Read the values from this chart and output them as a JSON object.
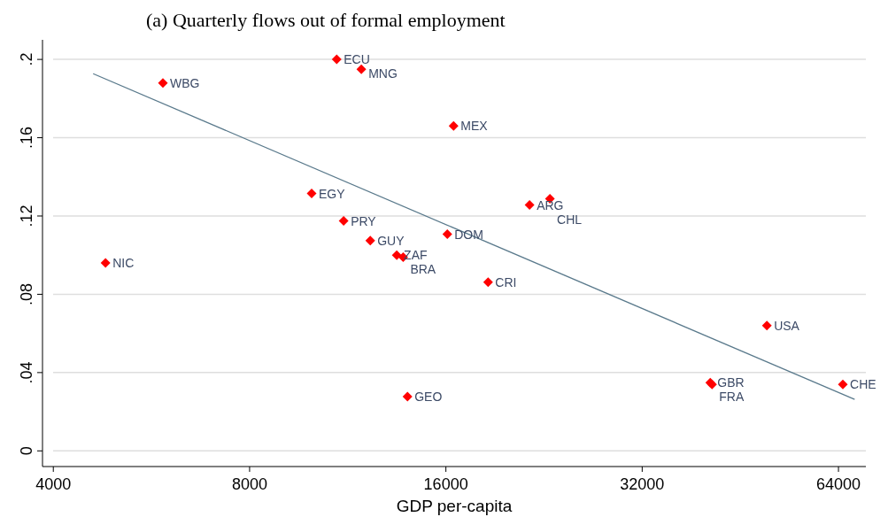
{
  "chart_data": {
    "type": "scatter",
    "title": "(a)  Quarterly flows out of formal employment",
    "xlabel": "GDP per-capita",
    "log": "x",
    "grid": "y",
    "xlim": [
      3850,
      70500
    ],
    "xticks": [
      4000,
      8000,
      16000,
      32000,
      64000
    ],
    "ylim": [
      -0.008,
      0.21
    ],
    "yticks": [
      {
        "value": 0,
        "label": "0"
      },
      {
        "value": 0.04,
        "label": ".04"
      },
      {
        "value": 0.08,
        "label": ".08"
      },
      {
        "value": 0.12,
        "label": ".12"
      },
      {
        "value": 0.16,
        "label": ".16"
      },
      {
        "value": 0.2,
        "label": ".2"
      }
    ],
    "series": [
      {
        "marker": "diamond",
        "color": "#ff0000",
        "x": [
          4810,
          5890,
          9960,
          11150,
          10880,
          11870,
          12250,
          13450,
          13760,
          13970,
          16080,
          16440,
          18570,
          21500,
          23100,
          40700,
          40950,
          49700,
          65000
        ],
        "values": [
          0.096,
          0.188,
          0.1315,
          0.1175,
          0.2,
          0.195,
          0.1075,
          0.1,
          0.099,
          0.0277,
          0.1107,
          0.166,
          0.0862,
          0.1256,
          0.1288,
          0.0349,
          0.034,
          0.064,
          0.034
        ]
      },
      {
        "type": "line",
        "color": "#5a7a8c",
        "x": [
          4604,
          67760
        ],
        "values": [
          0.1927,
          0.0263
        ]
      }
    ],
    "annotations": [
      {
        "text": "NIC",
        "x": 4810,
        "y": 0.096
      },
      {
        "text": "WBG",
        "x": 5890,
        "y": 0.188
      },
      {
        "text": "EGY",
        "x": 9960,
        "y": 0.1315
      },
      {
        "text": "PRY",
        "x": 11150,
        "y": 0.1175
      },
      {
        "text": "ECU",
        "x": 10880,
        "y": 0.2
      },
      {
        "text": "MNG",
        "x": 11870,
        "y": 0.195
      },
      {
        "text": "GUY",
        "x": 12250,
        "y": 0.1075
      },
      {
        "text": "ZAF",
        "x": 13450,
        "y": 0.1
      },
      {
        "text": "BRA",
        "x": 13760,
        "y": 0.099
      },
      {
        "text": "GEO",
        "x": 13970,
        "y": 0.0277
      },
      {
        "text": "DOM",
        "x": 16080,
        "y": 0.1107
      },
      {
        "text": "MEX",
        "x": 16440,
        "y": 0.166
      },
      {
        "text": "CRI",
        "x": 18570,
        "y": 0.0862
      },
      {
        "text": "ARG",
        "x": 21500,
        "y": 0.1256
      },
      {
        "text": "CHL",
        "x": 23100,
        "y": 0.1288
      },
      {
        "text": "GBR",
        "x": 40700,
        "y": 0.0349
      },
      {
        "text": "FRA",
        "x": 40950,
        "y": 0.034
      },
      {
        "text": "USA",
        "x": 49700,
        "y": 0.064
      },
      {
        "text": "CHE",
        "x": 65000,
        "y": 0.034
      }
    ]
  }
}
